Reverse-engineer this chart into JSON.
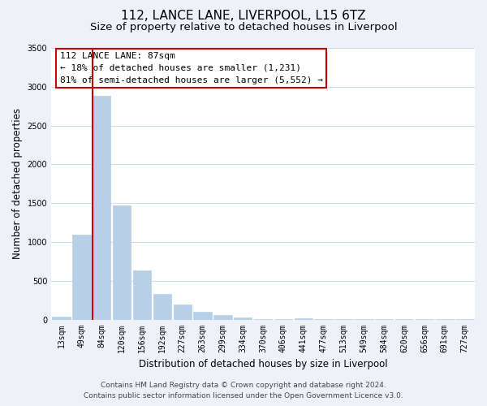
{
  "title": "112, LANCE LANE, LIVERPOOL, L15 6TZ",
  "subtitle": "Size of property relative to detached houses in Liverpool",
  "xlabel": "Distribution of detached houses by size in Liverpool",
  "ylabel": "Number of detached properties",
  "bar_labels": [
    "13sqm",
    "49sqm",
    "84sqm",
    "120sqm",
    "156sqm",
    "192sqm",
    "227sqm",
    "263sqm",
    "299sqm",
    "334sqm",
    "370sqm",
    "406sqm",
    "441sqm",
    "477sqm",
    "513sqm",
    "549sqm",
    "584sqm",
    "620sqm",
    "656sqm",
    "691sqm",
    "727sqm"
  ],
  "bar_values": [
    40,
    1090,
    2880,
    1470,
    630,
    325,
    190,
    95,
    55,
    25,
    10,
    5,
    15,
    5,
    5,
    2,
    2,
    1,
    1,
    1,
    1
  ],
  "bar_color": "#b8cfe8",
  "marker_bar_index": 2,
  "marker_line_color": "#cc0000",
  "property_label": "112 LANCE LANE: 87sqm",
  "annotation_line1": "← 18% of detached houses are smaller (1,231)",
  "annotation_line2": "81% of semi-detached houses are larger (5,552) →",
  "annotation_box_color": "#ffffff",
  "annotation_box_edgecolor": "#cc0000",
  "ylim": [
    0,
    3500
  ],
  "yticks": [
    0,
    500,
    1000,
    1500,
    2000,
    2500,
    3000,
    3500
  ],
  "footer_line1": "Contains HM Land Registry data © Crown copyright and database right 2024.",
  "footer_line2": "Contains public sector information licensed under the Open Government Licence v3.0.",
  "bg_color": "#eef2f8",
  "plot_bg_color": "#ffffff",
  "title_fontsize": 11,
  "subtitle_fontsize": 9.5,
  "axis_label_fontsize": 8.5,
  "tick_fontsize": 7,
  "footer_fontsize": 6.5,
  "annot_fontsize": 8
}
